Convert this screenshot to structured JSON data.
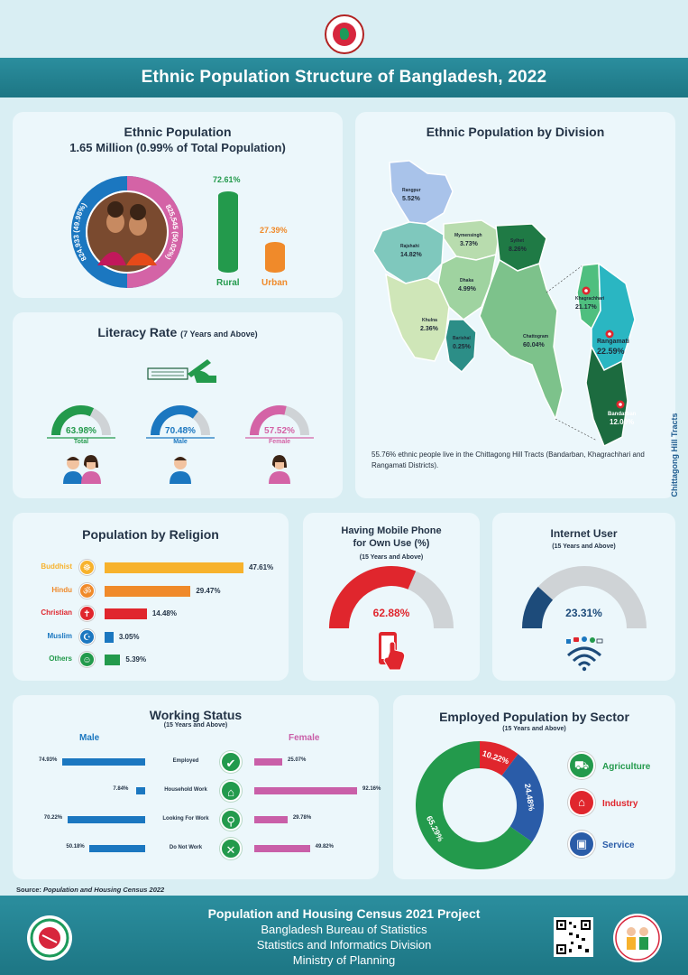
{
  "header": {
    "title": "Ethnic Population Structure of Bangladesh, 2022"
  },
  "ethnic_population": {
    "title": "Ethnic Population",
    "subtitle": "1.65 Million (0.99% of Total Population)",
    "male_label": "824,933 (49.98%)",
    "female_label": "825,545 (50.02%)",
    "rural_pct": "72.61%",
    "rural_label": "Rural",
    "urban_pct": "27.39%",
    "urban_label": "Urban",
    "rural_value": 72.61,
    "urban_value": 27.39
  },
  "division": {
    "title": "Ethnic Population by Division",
    "regions": [
      {
        "name": "Rangpur",
        "pct": "5.52%"
      },
      {
        "name": "Rajshahi",
        "pct": "14.82%"
      },
      {
        "name": "Mymensingh",
        "pct": "3.73%"
      },
      {
        "name": "Sylhet",
        "pct": "8.26%"
      },
      {
        "name": "Dhaka",
        "pct": "4.99%"
      },
      {
        "name": "Khulna",
        "pct": "2.36%"
      },
      {
        "name": "Barishal",
        "pct": "0.25%"
      },
      {
        "name": "Chattogram",
        "pct": "60.04%"
      },
      {
        "name": "Khagrachhari",
        "pct": "21.17%"
      },
      {
        "name": "Rangamati",
        "pct": "22.59%"
      },
      {
        "name": "Bandarban",
        "pct": "12.00%"
      }
    ],
    "cht_label": "Chittagong Hill Tracts",
    "note": "55.76% ethnic people live in the Chittagong Hill Tracts (Bandarban, Khagrachhari and Rangamati Districts)."
  },
  "literacy": {
    "title": "Literacy Rate",
    "title_suffix": "(7 Years and Above)",
    "items": [
      {
        "label": "Total",
        "value": "63.98%",
        "num": 63.98,
        "color": "#239a4c"
      },
      {
        "label": "Male",
        "value": "70.48%",
        "num": 70.48,
        "color": "#1b77c0"
      },
      {
        "label": "Female",
        "value": "57.52%",
        "num": 57.52,
        "color": "#d463a6"
      }
    ]
  },
  "religion": {
    "title": "Population by Religion",
    "items": [
      {
        "name": "Buddhist",
        "value": "47.61%",
        "num": 47.61,
        "color": "#f7b22c",
        "icon": "☸"
      },
      {
        "name": "Hindu",
        "value": "29.47%",
        "num": 29.47,
        "color": "#f08a2a",
        "icon": "ॐ"
      },
      {
        "name": "Christian",
        "value": "14.48%",
        "num": 14.48,
        "color": "#e0262d",
        "icon": "✝"
      },
      {
        "name": "Muslim",
        "value": "3.05%",
        "num": 3.05,
        "color": "#1b77c0",
        "icon": "☪"
      },
      {
        "name": "Others",
        "value": "5.39%",
        "num": 5.39,
        "color": "#239a4c",
        "icon": "☺"
      }
    ]
  },
  "mobile": {
    "title_line1": "Having Mobile Phone",
    "title_line2": "for Own Use (%)",
    "subtitle": "(15 Years and Above)",
    "value": "62.88%",
    "num": 62.88
  },
  "internet": {
    "title": "Internet User",
    "subtitle": "(15 Years and Above)",
    "value": "23.31%",
    "num": 23.31
  },
  "working": {
    "title": "Working Status",
    "subtitle": "(15 Years and Above)",
    "male_head": "Male",
    "female_head": "Female",
    "rows": [
      {
        "label": "Employed",
        "male": "74.93%",
        "male_num": 74.93,
        "female": "25.07%",
        "female_num": 25.07,
        "icon": "✔"
      },
      {
        "label": "Household Work",
        "male": "7.84%",
        "male_num": 7.84,
        "female": "92.16%",
        "female_num": 92.16,
        "icon": "⌂"
      },
      {
        "label": "Looking For Work",
        "male": "70.22%",
        "male_num": 70.22,
        "female": "29.78%",
        "female_num": 29.78,
        "icon": "⚲"
      },
      {
        "label": "Do Not Work",
        "male": "50.18%",
        "male_num": 50.18,
        "female": "49.82%",
        "female_num": 49.82,
        "icon": "✕"
      }
    ]
  },
  "sector": {
    "title": "Employed Population by Sector",
    "subtitle": "(15 Years and Above)",
    "items": [
      {
        "name": "Agriculture",
        "value": "65.29%",
        "num": 65.29,
        "color": "#239a4c"
      },
      {
        "name": "Industry",
        "value": "10.22%",
        "num": 10.22,
        "color": "#e0262d"
      },
      {
        "name": "Service",
        "value": "24.48%",
        "num": 24.48,
        "color": "#2a5ca8"
      }
    ]
  },
  "source": {
    "label": "Source:",
    "text": "Population and Housing Census 2022"
  },
  "footer": {
    "title": "Population and Housing Census 2021 Project",
    "line1": "Bangladesh Bureau of Statistics",
    "line2": "Statistics and Informatics Division",
    "line3": "Ministry of Planning"
  }
}
